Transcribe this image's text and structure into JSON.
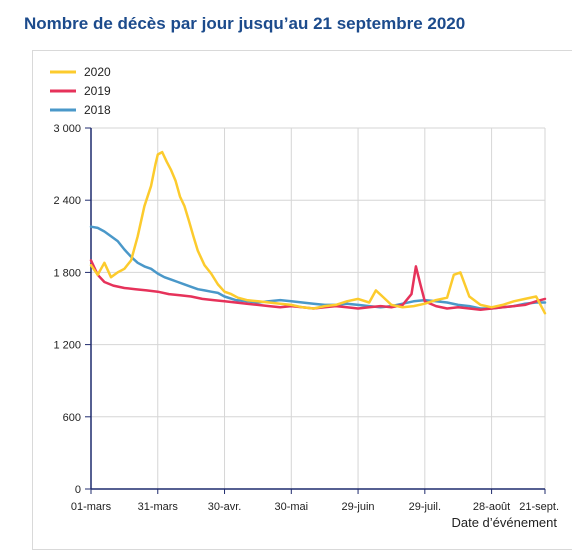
{
  "header": {
    "title": "Nombre de décès par jour jusqu’au 21 septembre 2020"
  },
  "chart_data": {
    "type": "line",
    "title": "Nombre de décès par jour jusqu’au 21 septembre 2020",
    "xlabel": "Date d’événement",
    "ylabel": "",
    "ylim": [
      0,
      3000
    ],
    "yticks": [
      0,
      600,
      1200,
      1800,
      2400,
      3000
    ],
    "ytick_labels": [
      "0",
      "600",
      "1 200",
      "1 800",
      "2 400",
      "3 000"
    ],
    "xticks": [
      {
        "day": 0,
        "label": "01-mars"
      },
      {
        "day": 30,
        "label": "31-mars"
      },
      {
        "day": 60,
        "label": "30-avr."
      },
      {
        "day": 90,
        "label": "30-mai"
      },
      {
        "day": 120,
        "label": "29-juin"
      },
      {
        "day": 150,
        "label": "29-juil."
      },
      {
        "day": 180,
        "label": "28-août"
      },
      {
        "day": 204,
        "label": "21-sept."
      }
    ],
    "x_start": "01-mars",
    "x_end": "21-sept.",
    "grid": true,
    "legend_position": "top-left",
    "series": [
      {
        "name": "2020",
        "color": "#fccb2d",
        "points": [
          [
            0,
            1860
          ],
          [
            3,
            1780
          ],
          [
            6,
            1880
          ],
          [
            9,
            1760
          ],
          [
            12,
            1800
          ],
          [
            15,
            1830
          ],
          [
            18,
            1900
          ],
          [
            21,
            2100
          ],
          [
            24,
            2350
          ],
          [
            27,
            2520
          ],
          [
            29,
            2700
          ],
          [
            30,
            2780
          ],
          [
            32,
            2800
          ],
          [
            34,
            2720
          ],
          [
            36,
            2650
          ],
          [
            38,
            2560
          ],
          [
            40,
            2430
          ],
          [
            42,
            2350
          ],
          [
            44,
            2230
          ],
          [
            46,
            2100
          ],
          [
            48,
            1980
          ],
          [
            51,
            1860
          ],
          [
            54,
            1790
          ],
          [
            57,
            1700
          ],
          [
            60,
            1640
          ],
          [
            63,
            1620
          ],
          [
            66,
            1590
          ],
          [
            70,
            1570
          ],
          [
            75,
            1560
          ],
          [
            80,
            1550
          ],
          [
            85,
            1540
          ],
          [
            90,
            1530
          ],
          [
            95,
            1510
          ],
          [
            100,
            1500
          ],
          [
            105,
            1520
          ],
          [
            110,
            1530
          ],
          [
            115,
            1560
          ],
          [
            120,
            1580
          ],
          [
            125,
            1550
          ],
          [
            128,
            1650
          ],
          [
            131,
            1600
          ],
          [
            135,
            1530
          ],
          [
            140,
            1510
          ],
          [
            145,
            1520
          ],
          [
            150,
            1540
          ],
          [
            155,
            1570
          ],
          [
            160,
            1590
          ],
          [
            163,
            1780
          ],
          [
            166,
            1800
          ],
          [
            170,
            1600
          ],
          [
            175,
            1530
          ],
          [
            180,
            1510
          ],
          [
            185,
            1530
          ],
          [
            190,
            1560
          ],
          [
            195,
            1580
          ],
          [
            200,
            1600
          ],
          [
            204,
            1460
          ]
        ]
      },
      {
        "name": "2019",
        "color": "#e6325a",
        "points": [
          [
            0,
            1900
          ],
          [
            3,
            1780
          ],
          [
            6,
            1720
          ],
          [
            10,
            1690
          ],
          [
            15,
            1670
          ],
          [
            20,
            1660
          ],
          [
            25,
            1650
          ],
          [
            30,
            1640
          ],
          [
            35,
            1620
          ],
          [
            40,
            1610
          ],
          [
            45,
            1600
          ],
          [
            50,
            1580
          ],
          [
            55,
            1570
          ],
          [
            60,
            1560
          ],
          [
            65,
            1550
          ],
          [
            70,
            1540
          ],
          [
            75,
            1530
          ],
          [
            80,
            1520
          ],
          [
            85,
            1510
          ],
          [
            90,
            1520
          ],
          [
            95,
            1510
          ],
          [
            100,
            1500
          ],
          [
            105,
            1510
          ],
          [
            110,
            1520
          ],
          [
            115,
            1510
          ],
          [
            120,
            1500
          ],
          [
            125,
            1510
          ],
          [
            130,
            1520
          ],
          [
            135,
            1510
          ],
          [
            140,
            1530
          ],
          [
            144,
            1620
          ],
          [
            146,
            1850
          ],
          [
            148,
            1700
          ],
          [
            150,
            1560
          ],
          [
            155,
            1520
          ],
          [
            160,
            1500
          ],
          [
            165,
            1510
          ],
          [
            170,
            1500
          ],
          [
            175,
            1490
          ],
          [
            180,
            1500
          ],
          [
            185,
            1510
          ],
          [
            190,
            1520
          ],
          [
            195,
            1530
          ],
          [
            200,
            1560
          ],
          [
            204,
            1580
          ]
        ]
      },
      {
        "name": "2018",
        "color": "#4a98c9",
        "points": [
          [
            0,
            2180
          ],
          [
            3,
            2170
          ],
          [
            6,
            2140
          ],
          [
            9,
            2100
          ],
          [
            12,
            2060
          ],
          [
            15,
            1990
          ],
          [
            18,
            1930
          ],
          [
            21,
            1880
          ],
          [
            24,
            1850
          ],
          [
            27,
            1830
          ],
          [
            30,
            1790
          ],
          [
            33,
            1760
          ],
          [
            36,
            1740
          ],
          [
            39,
            1720
          ],
          [
            42,
            1700
          ],
          [
            45,
            1680
          ],
          [
            48,
            1660
          ],
          [
            51,
            1650
          ],
          [
            54,
            1640
          ],
          [
            57,
            1630
          ],
          [
            60,
            1600
          ],
          [
            65,
            1570
          ],
          [
            70,
            1560
          ],
          [
            75,
            1550
          ],
          [
            80,
            1560
          ],
          [
            85,
            1570
          ],
          [
            90,
            1560
          ],
          [
            95,
            1550
          ],
          [
            100,
            1540
          ],
          [
            105,
            1530
          ],
          [
            110,
            1530
          ],
          [
            115,
            1540
          ],
          [
            120,
            1530
          ],
          [
            125,
            1520
          ],
          [
            130,
            1510
          ],
          [
            135,
            1520
          ],
          [
            140,
            1540
          ],
          [
            145,
            1560
          ],
          [
            150,
            1570
          ],
          [
            155,
            1560
          ],
          [
            160,
            1550
          ],
          [
            165,
            1530
          ],
          [
            170,
            1520
          ],
          [
            175,
            1500
          ],
          [
            180,
            1500
          ],
          [
            185,
            1510
          ],
          [
            190,
            1520
          ],
          [
            195,
            1540
          ],
          [
            200,
            1550
          ],
          [
            204,
            1550
          ]
        ]
      }
    ]
  }
}
